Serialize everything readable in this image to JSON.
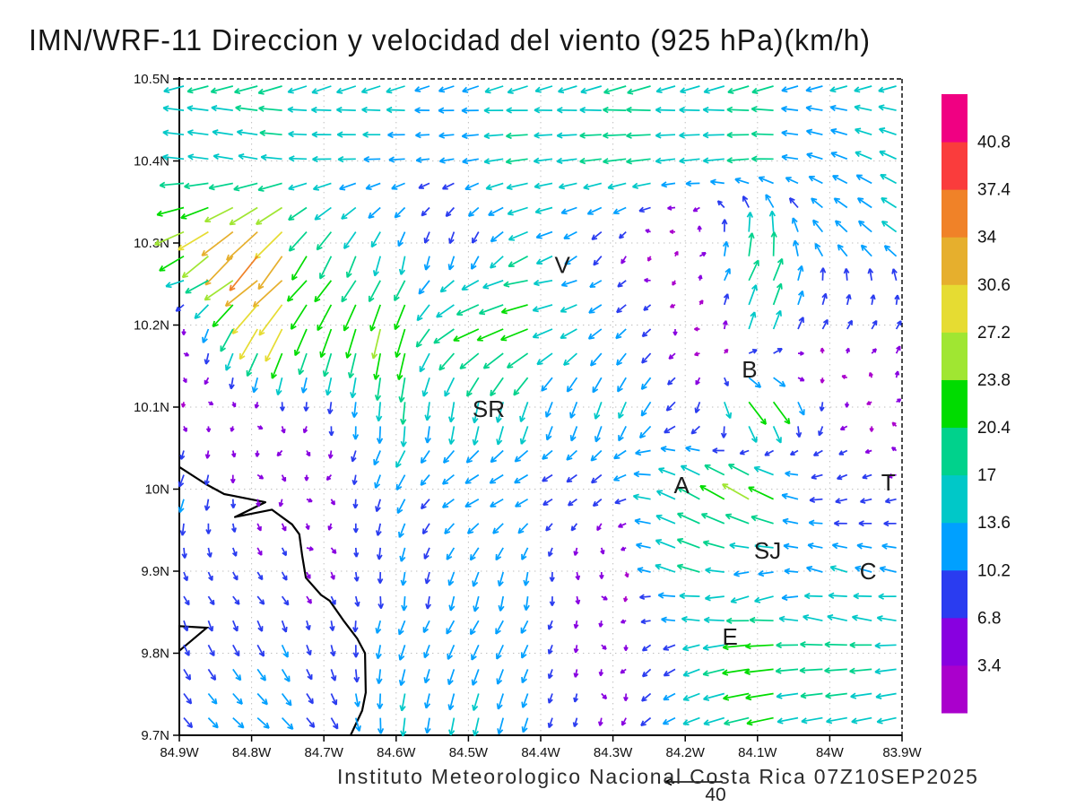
{
  "title": "IMN/WRF-11 Direccion y velocidad del viento (925 hPa)(km/h)",
  "caption": "Instituto Meteorologico Nacional Costa Rica 07Z10SEP2025",
  "reference": {
    "label": "40"
  },
  "chart_data": {
    "type": "scatter",
    "variant": "wind_vector_field",
    "title": "IMN/WRF-11 Direccion y velocidad del viento (925 hPa)(km/h)",
    "unit": "km/h",
    "level": "925 hPa",
    "valid_time": "07Z10SEP2025",
    "grid": true,
    "lon_range": [
      -84.9,
      -83.9
    ],
    "lat_range": [
      9.7,
      10.5
    ],
    "x_ticks": [
      "84.9W",
      "84.8W",
      "84.7W",
      "84.6W",
      "84.5W",
      "84.4W",
      "84.3W",
      "84.2W",
      "84.1W",
      "84W",
      "83.9W"
    ],
    "y_ticks": [
      "10.5N",
      "10.4N",
      "10.3N",
      "10.2N",
      "10.1N",
      "10N",
      "9.9N",
      "9.8N",
      "9.7N"
    ],
    "colorbar": {
      "position": "right",
      "unit": "km/h",
      "levels": [
        3.4,
        6.8,
        10.2,
        13.6,
        17,
        20.4,
        23.8,
        27.2,
        30.6,
        34,
        37.4,
        40.8
      ],
      "colors": [
        "#aa00cc",
        "#8800e0",
        "#2a3cf0",
        "#00a0ff",
        "#00c8c8",
        "#00d28c",
        "#00dc00",
        "#a0e632",
        "#e6dc32",
        "#e6af2d",
        "#f08228",
        "#fa3c3c",
        "#f00082"
      ]
    },
    "reference_vector": {
      "value": 40,
      "label": "40"
    },
    "stations": [
      {
        "label": "V",
        "lon": -84.37,
        "lat": 10.273
      },
      {
        "label": "B",
        "lon": -84.111,
        "lat": 10.146
      },
      {
        "label": "SR",
        "lon": -84.472,
        "lat": 10.098
      },
      {
        "label": "A",
        "lon": -84.205,
        "lat": 10.005
      },
      {
        "label": "T",
        "lon": -83.919,
        "lat": 10.008
      },
      {
        "label": "SJ",
        "lon": -84.086,
        "lat": 9.925
      },
      {
        "label": "C",
        "lon": -83.947,
        "lat": 9.9
      },
      {
        "label": "E",
        "lon": -84.138,
        "lat": 9.82
      }
    ],
    "coastline": {
      "main": [
        [
          -84.9,
          10.027
        ],
        [
          -84.863,
          10.006
        ],
        [
          -84.838,
          9.994
        ],
        [
          -84.781,
          9.984
        ],
        [
          -84.823,
          9.966
        ],
        [
          -84.772,
          9.975
        ],
        [
          -84.744,
          9.957
        ],
        [
          -84.734,
          9.945
        ],
        [
          -84.73,
          9.919
        ],
        [
          -84.725,
          9.892
        ],
        [
          -84.704,
          9.871
        ],
        [
          -84.692,
          9.864
        ],
        [
          -84.673,
          9.84
        ],
        [
          -84.654,
          9.818
        ],
        [
          -84.643,
          9.8
        ],
        [
          -84.642,
          9.752
        ],
        [
          -84.647,
          9.73
        ],
        [
          -84.663,
          9.7
        ]
      ],
      "islet": [
        [
          -84.9,
          9.833
        ],
        [
          -84.862,
          9.831
        ],
        [
          -84.9,
          9.803
        ]
      ]
    },
    "wind_controls": {
      "comment": "u=eastward, v=northward components (km/h) on a 0.1 deg control grid; rows run north(10.5N) to south(9.7N), cols west(84.9W) to east(83.9W)",
      "lons": [
        -84.9,
        -84.8,
        -84.7,
        -84.6,
        -84.5,
        -84.4,
        -84.3,
        -84.2,
        -84.1,
        -84.0,
        -83.9
      ],
      "lats": [
        10.5,
        10.4,
        10.3,
        10.2,
        10.1,
        10.0,
        9.9,
        9.8,
        9.7
      ],
      "uv": [
        [
          [
            -18,
            -2
          ],
          [
            -18,
            -2
          ],
          [
            -17,
            -3
          ],
          [
            -14,
            -2
          ],
          [
            -13,
            -2
          ],
          [
            -15,
            -2
          ],
          [
            -17,
            -2
          ],
          [
            -17,
            -2
          ],
          [
            -16,
            -2
          ],
          [
            -14,
            -2
          ],
          [
            -13,
            -2
          ]
        ],
        [
          [
            -19,
            1
          ],
          [
            -14,
            2
          ],
          [
            -16,
            -1
          ],
          [
            -11,
            -1
          ],
          [
            -12,
            -3
          ],
          [
            -16,
            -3
          ],
          [
            -17,
            -3
          ],
          [
            -17,
            -3
          ],
          [
            -16,
            -2
          ],
          [
            -13,
            4
          ],
          [
            -12,
            5
          ]
        ],
        [
          [
            -28,
            -9
          ],
          [
            -28,
            -22
          ],
          [
            -14,
            -16
          ],
          [
            -5,
            -11
          ],
          [
            -3,
            -10
          ],
          [
            -16,
            -3
          ],
          [
            -5,
            -6
          ],
          [
            2,
            3
          ],
          [
            6,
            19
          ],
          [
            -7,
            11
          ],
          [
            -9,
            9
          ]
        ],
        [
          [
            2,
            -4
          ],
          [
            -13,
            -24
          ],
          [
            -8,
            -25
          ],
          [
            -3,
            -22
          ],
          [
            -20,
            -10
          ],
          [
            -19,
            -8
          ],
          [
            -8,
            -8
          ],
          [
            -3,
            -3
          ],
          [
            4,
            17
          ],
          [
            4,
            8
          ],
          [
            3,
            6
          ]
        ],
        [
          [
            2,
            -3
          ],
          [
            2,
            -3
          ],
          [
            -2,
            -8
          ],
          [
            -3,
            -15
          ],
          [
            -4,
            -17
          ],
          [
            -6,
            -13
          ],
          [
            -6,
            -13
          ],
          [
            -9,
            -6
          ],
          [
            14,
            -22
          ],
          [
            -4,
            -7
          ],
          [
            2,
            4
          ]
        ],
        [
          [
            -4,
            -13
          ],
          [
            2,
            -5
          ],
          [
            3,
            -4
          ],
          [
            -4,
            -11
          ],
          [
            -11,
            -6
          ],
          [
            -9,
            -5
          ],
          [
            -7,
            -6
          ],
          [
            -18,
            8
          ],
          [
            -22,
            12
          ],
          [
            -9,
            -4
          ],
          [
            -7,
            -3
          ]
        ],
        [
          [
            2,
            -8
          ],
          [
            3,
            -6
          ],
          [
            2,
            -6
          ],
          [
            -2,
            -9
          ],
          [
            -6,
            -11
          ],
          [
            -2,
            -9
          ],
          [
            3,
            -4
          ],
          [
            -20,
            10
          ],
          [
            -10,
            -2
          ],
          [
            -13,
            6
          ],
          [
            -11,
            4
          ]
        ],
        [
          [
            6,
            -9
          ],
          [
            6,
            -8
          ],
          [
            4,
            -9
          ],
          [
            -2,
            -11
          ],
          [
            -4,
            -13
          ],
          [
            -3,
            -9
          ],
          [
            2,
            -4
          ],
          [
            -11,
            -7
          ],
          [
            -21,
            -4
          ],
          [
            -19,
            -2
          ],
          [
            -15,
            -3
          ]
        ],
        [
          [
            7,
            -9
          ],
          [
            9,
            -8
          ],
          [
            6,
            -9
          ],
          [
            -2,
            -13
          ],
          [
            -4,
            -15
          ],
          [
            -4,
            -9
          ],
          [
            -2,
            -6
          ],
          [
            -13,
            -4
          ],
          [
            -19,
            -3
          ],
          [
            -17,
            -2
          ],
          [
            -13,
            -2
          ]
        ]
      ]
    }
  }
}
